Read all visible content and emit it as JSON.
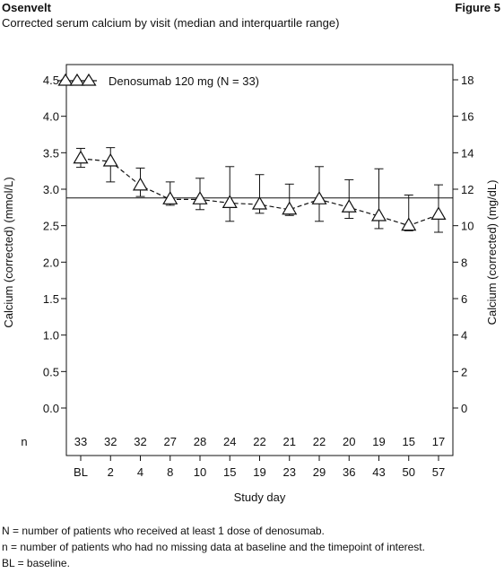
{
  "header": {
    "drug_name": "Osenvelt",
    "figure_label": "Figure 5",
    "subtitle": "Corrected serum calcium by visit (median and interquartile range)"
  },
  "footnotes": [
    "N = number of patients who received at least 1 dose of denosumab.",
    "n = number of patients who had no missing data at baseline and the timepoint of interest.",
    "BL = baseline."
  ],
  "chart_data": {
    "type": "line",
    "title": "",
    "xlabel": "Study day",
    "ylabel_left": "Calcium (corrected) (mmol/L)",
    "ylabel_right": "Calcium (corrected) (mg/dL)",
    "categories": [
      "BL",
      "2",
      "4",
      "8",
      "10",
      "15",
      "19",
      "23",
      "29",
      "36",
      "43",
      "50",
      "57"
    ],
    "n_row_label": "n",
    "n_values": [
      33,
      32,
      32,
      27,
      28,
      24,
      22,
      21,
      22,
      20,
      19,
      15,
      17
    ],
    "ylim_left": [
      0.0,
      4.5
    ],
    "yticks_left": [
      "0.0",
      "0.5",
      "1.0",
      "1.5",
      "2.0",
      "2.5",
      "3.0",
      "3.5",
      "4.0",
      "4.5"
    ],
    "ylim_right": [
      0,
      18
    ],
    "yticks_right": [
      "0",
      "2",
      "4",
      "6",
      "8",
      "10",
      "12",
      "14",
      "16",
      "18"
    ],
    "reference_line": 2.88,
    "legend_position": "top-left",
    "series": [
      {
        "name": "Denosumab 120 mg (N = 33)",
        "marker": "triangle",
        "line_style": "dashed",
        "median": [
          3.42,
          3.38,
          3.05,
          2.86,
          2.86,
          2.81,
          2.79,
          2.72,
          2.86,
          2.75,
          2.63,
          2.5,
          2.65
        ],
        "q1": [
          3.3,
          3.1,
          2.9,
          2.78,
          2.72,
          2.56,
          2.67,
          2.64,
          2.56,
          2.6,
          2.46,
          2.43,
          2.41
        ],
        "q3": [
          3.56,
          3.57,
          3.29,
          3.1,
          3.15,
          3.31,
          3.2,
          3.07,
          3.31,
          3.13,
          3.28,
          2.92,
          3.06
        ]
      }
    ]
  }
}
